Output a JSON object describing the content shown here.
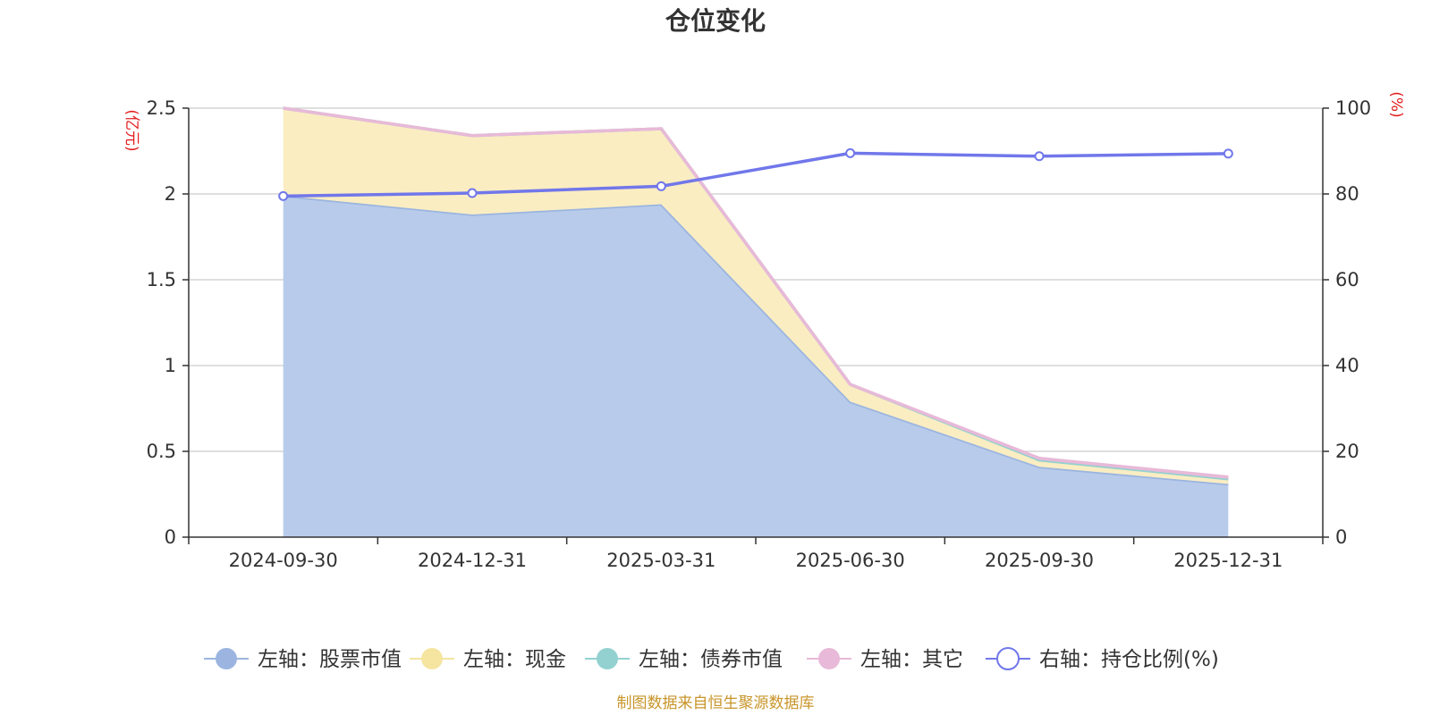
{
  "chart_data": {
    "type": "area",
    "title": "仓位变化",
    "left_axis_unit": "(亿元)",
    "right_axis_unit": "(%)",
    "categories": [
      "2024-09-30",
      "2024-12-31",
      "2025-03-31",
      "2025-06-30",
      "2025-09-30",
      "2025-12-31"
    ],
    "left_ylim": [
      0,
      2.5
    ],
    "left_ticks": [
      "0",
      "0.5",
      "1",
      "1.5",
      "2",
      "2.5"
    ],
    "right_ylim": [
      0,
      100
    ],
    "right_ticks": [
      "0",
      "20",
      "40",
      "60",
      "80",
      "100"
    ],
    "grid": true,
    "legend_position": "bottom",
    "stacked": true,
    "series": [
      {
        "name": "左轴：股票市值",
        "axis": "left",
        "kind": "area",
        "color": "#9bb5e0",
        "fill": "#b8cbea",
        "values": [
          1.99,
          1.88,
          1.94,
          0.79,
          0.41,
          0.31
        ]
      },
      {
        "name": "左轴：现金",
        "axis": "left",
        "kind": "area",
        "color": "#f5e5a0",
        "fill": "#faedc2",
        "values": [
          0.51,
          0.46,
          0.44,
          0.1,
          0.04,
          0.03
        ]
      },
      {
        "name": "左轴：债券市值",
        "axis": "left",
        "kind": "area",
        "color": "#93d1d1",
        "fill": "#93d1d1",
        "values": [
          0,
          0,
          0,
          0,
          0,
          0
        ]
      },
      {
        "name": "左轴：其它",
        "axis": "left",
        "kind": "area",
        "color": "#e8b9d8",
        "fill": "#e8b9d8",
        "values": [
          0,
          0,
          0,
          0,
          0.01,
          0.01
        ]
      },
      {
        "name": "右轴：持仓比例(%)",
        "axis": "right",
        "kind": "line",
        "color": "#7177ea",
        "values": [
          79.5,
          80.2,
          81.8,
          89.5,
          88.8,
          89.4
        ]
      }
    ],
    "source_note": "制图数据来自恒生聚源数据库"
  },
  "colors": {
    "left_unit": "#e31d1d",
    "right_unit": "#e31d1d",
    "source_note": "#c8952a",
    "axis_text": "#333333",
    "grid": "#cccccc"
  }
}
